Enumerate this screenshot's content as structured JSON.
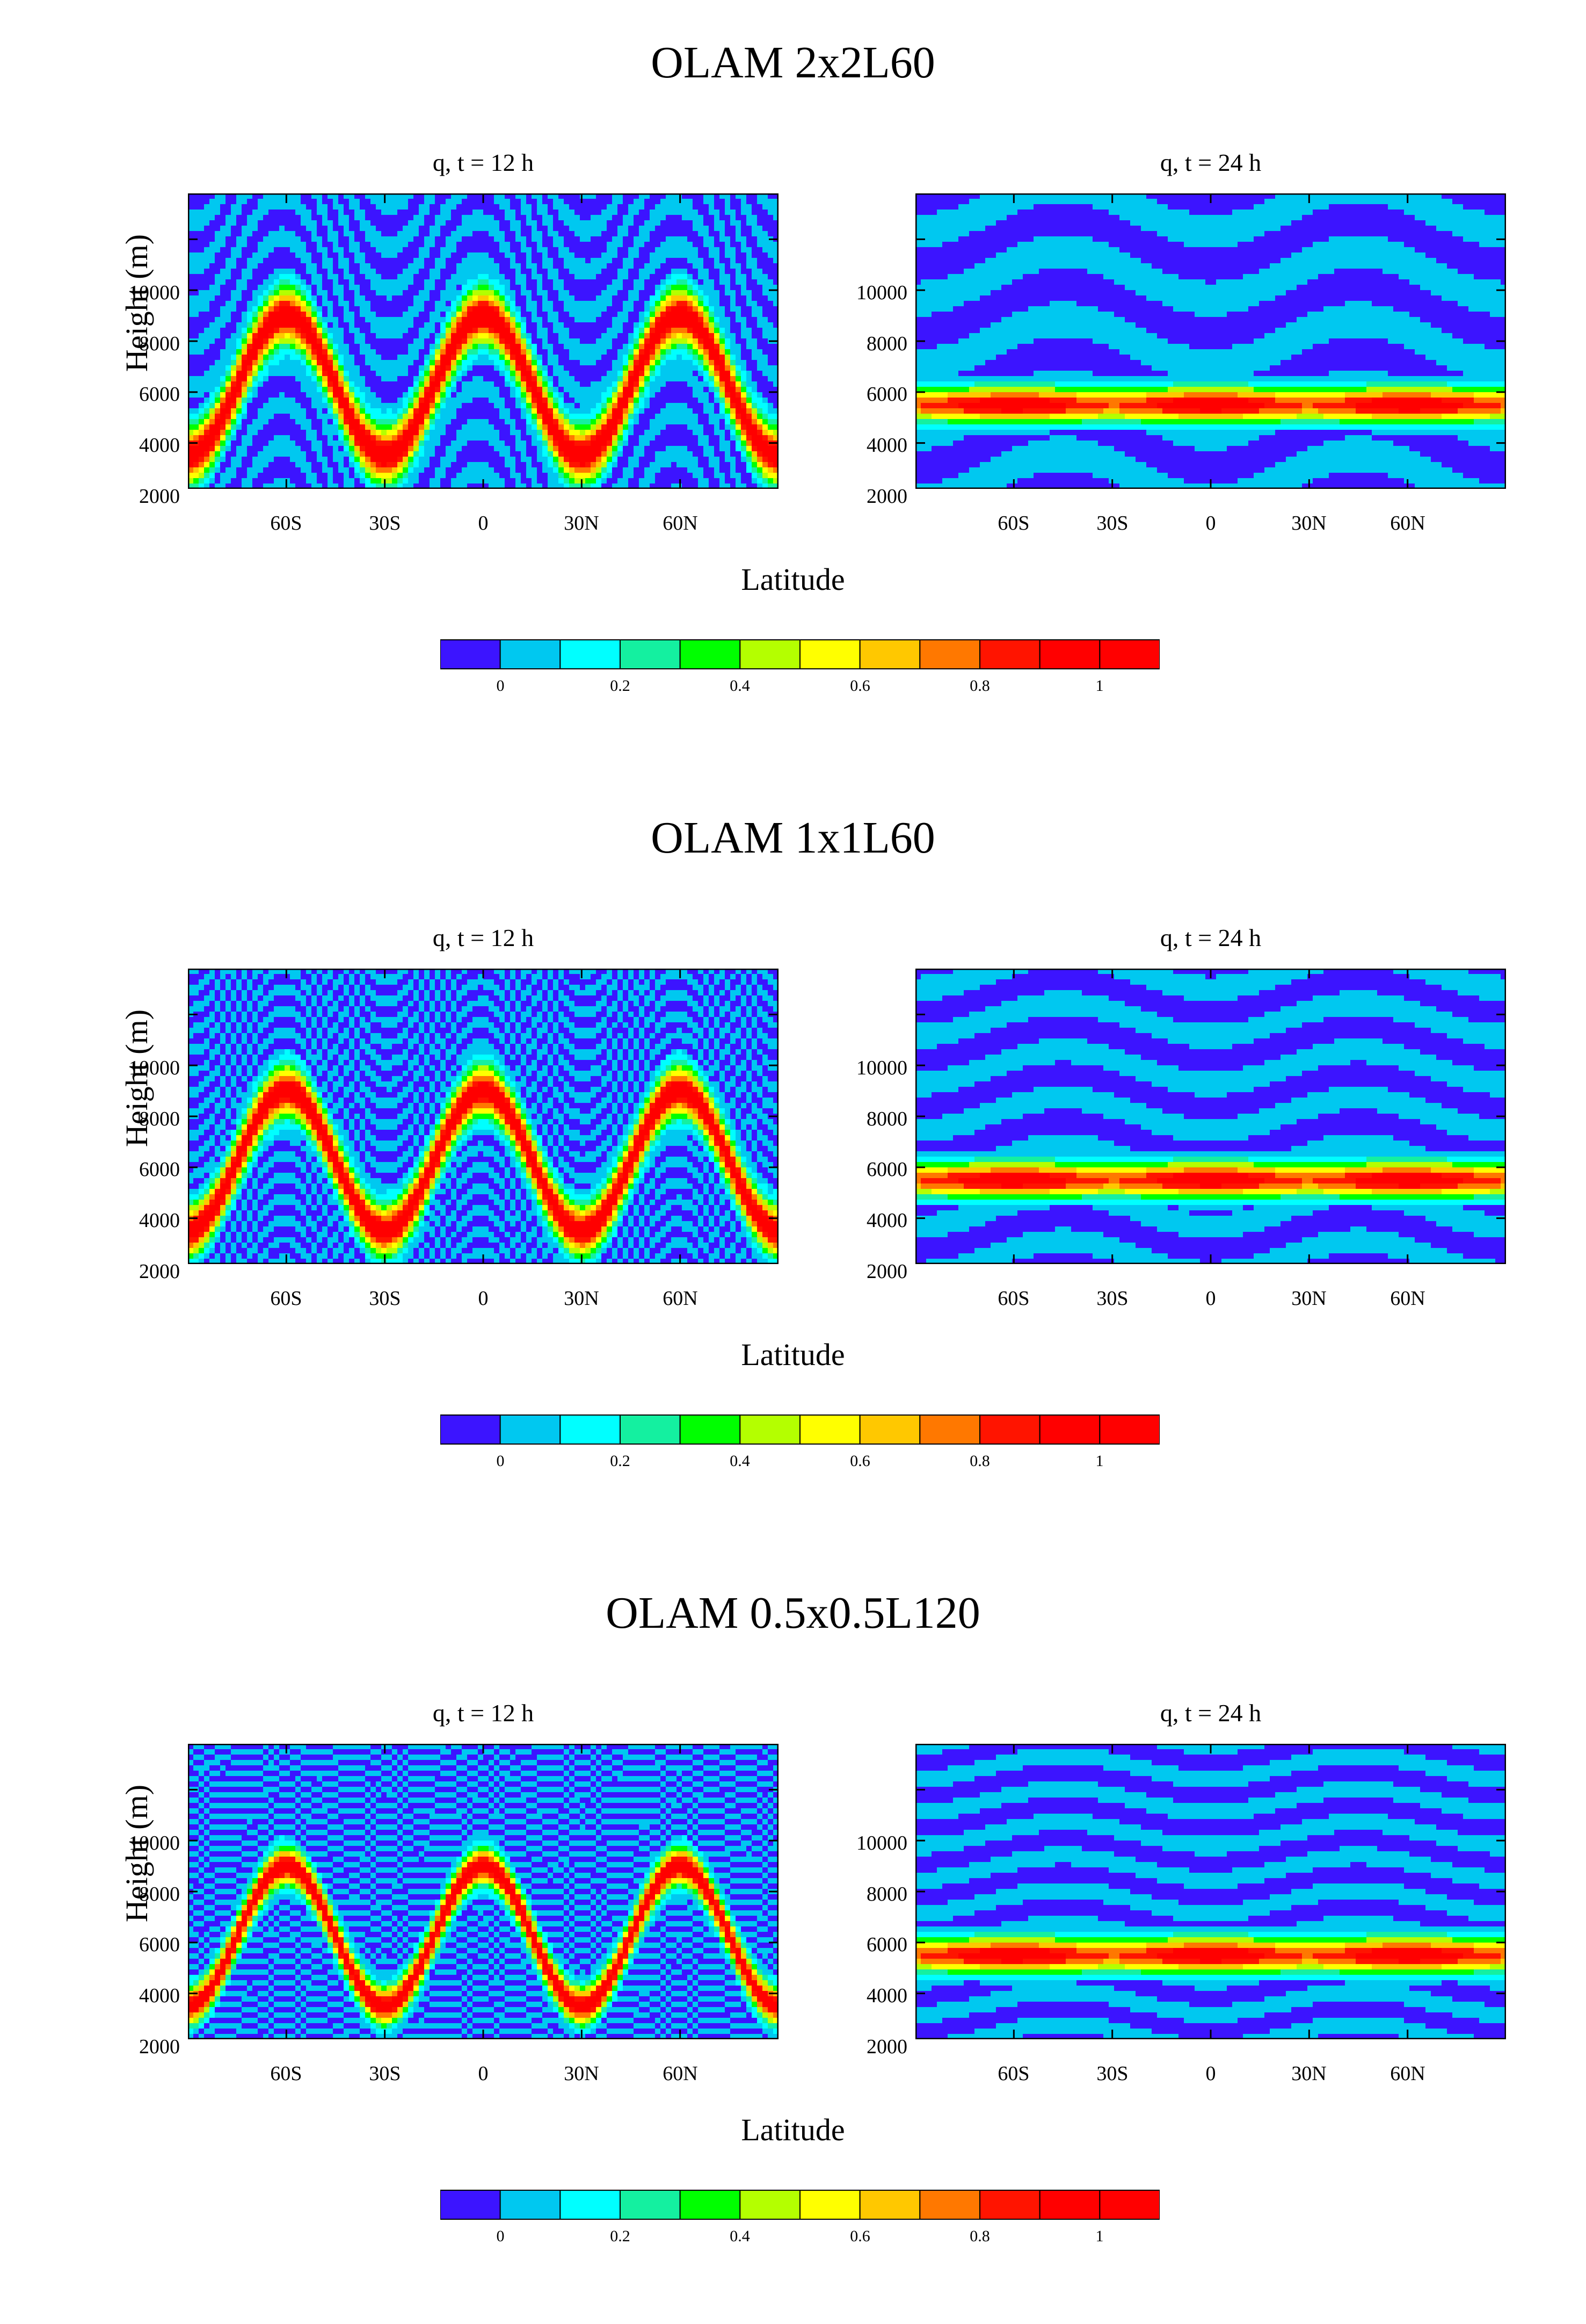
{
  "chart_data": [
    {
      "type": "contour",
      "title": "OLAM 2x2L60",
      "xlabel": "Latitude",
      "ylabel": "Height (m)",
      "panels": [
        {
          "title": "q, t = 12 h",
          "time_h": 12
        },
        {
          "title": "q, t = 24 h",
          "time_h": 24
        }
      ],
      "x_ticks": [
        "60S",
        "30S",
        "0",
        "30N",
        "60N"
      ],
      "x_tick_values": [
        -60,
        -30,
        0,
        30,
        60
      ],
      "y_ticks": [
        "2000",
        "4000",
        "6000",
        "8000",
        "10000"
      ],
      "y_tick_values": [
        2000,
        4000,
        6000,
        8000,
        10000
      ],
      "xlim": [
        -90,
        90
      ],
      "ylim": [
        200,
        11800
      ],
      "colorbar": {
        "ticks": [
          "0",
          "0.2",
          "0.4",
          "0.6",
          "0.8",
          "1"
        ]
      },
      "resolution_factor": 1
    },
    {
      "type": "contour",
      "title": "OLAM 1x1L60",
      "xlabel": "Latitude",
      "ylabel": "Height (m)",
      "panels": [
        {
          "title": "q, t = 12 h",
          "time_h": 12
        },
        {
          "title": "q, t = 24 h",
          "time_h": 24
        }
      ],
      "x_ticks": [
        "60S",
        "30S",
        "0",
        "30N",
        "60N"
      ],
      "x_tick_values": [
        -60,
        -30,
        0,
        30,
        60
      ],
      "y_ticks": [
        "2000",
        "4000",
        "6000",
        "8000",
        "10000"
      ],
      "y_tick_values": [
        2000,
        4000,
        6000,
        8000,
        10000
      ],
      "xlim": [
        -90,
        90
      ],
      "ylim": [
        200,
        11800
      ],
      "colorbar": {
        "ticks": [
          "0",
          "0.2",
          "0.4",
          "0.6",
          "0.8",
          "1"
        ]
      },
      "resolution_factor": 2
    },
    {
      "type": "contour",
      "title": "OLAM 0.5x0.5L120",
      "xlabel": "Latitude",
      "ylabel": "Height (m)",
      "panels": [
        {
          "title": "q, t = 12 h",
          "time_h": 12
        },
        {
          "title": "q, t = 24 h",
          "time_h": 24
        }
      ],
      "x_ticks": [
        "60S",
        "30S",
        "0",
        "30N",
        "60N"
      ],
      "x_tick_values": [
        -60,
        -30,
        0,
        30,
        60
      ],
      "y_ticks": [
        "2000",
        "4000",
        "6000",
        "8000",
        "10000"
      ],
      "y_tick_values": [
        2000,
        4000,
        6000,
        8000,
        10000
      ],
      "xlim": [
        -90,
        90
      ],
      "ylim": [
        200,
        11800
      ],
      "colorbar": {
        "ticks": [
          "0",
          "0.2",
          "0.4",
          "0.6",
          "0.8",
          "1"
        ]
      },
      "resolution_factor": 4
    }
  ],
  "colormap": {
    "levels": [
      -0.1,
      0.0,
      0.1,
      0.2,
      0.3,
      0.4,
      0.5,
      0.6,
      0.7,
      0.8,
      0.9,
      1.0,
      1.1
    ],
    "colors": [
      "#3c14ff",
      "#00c8f0",
      "#00ffff",
      "#14f0a0",
      "#00ff00",
      "#b4ff00",
      "#ffff00",
      "#ffc800",
      "#ff7800",
      "#ff1400",
      "#ff0000",
      "#ff0000"
    ]
  }
}
